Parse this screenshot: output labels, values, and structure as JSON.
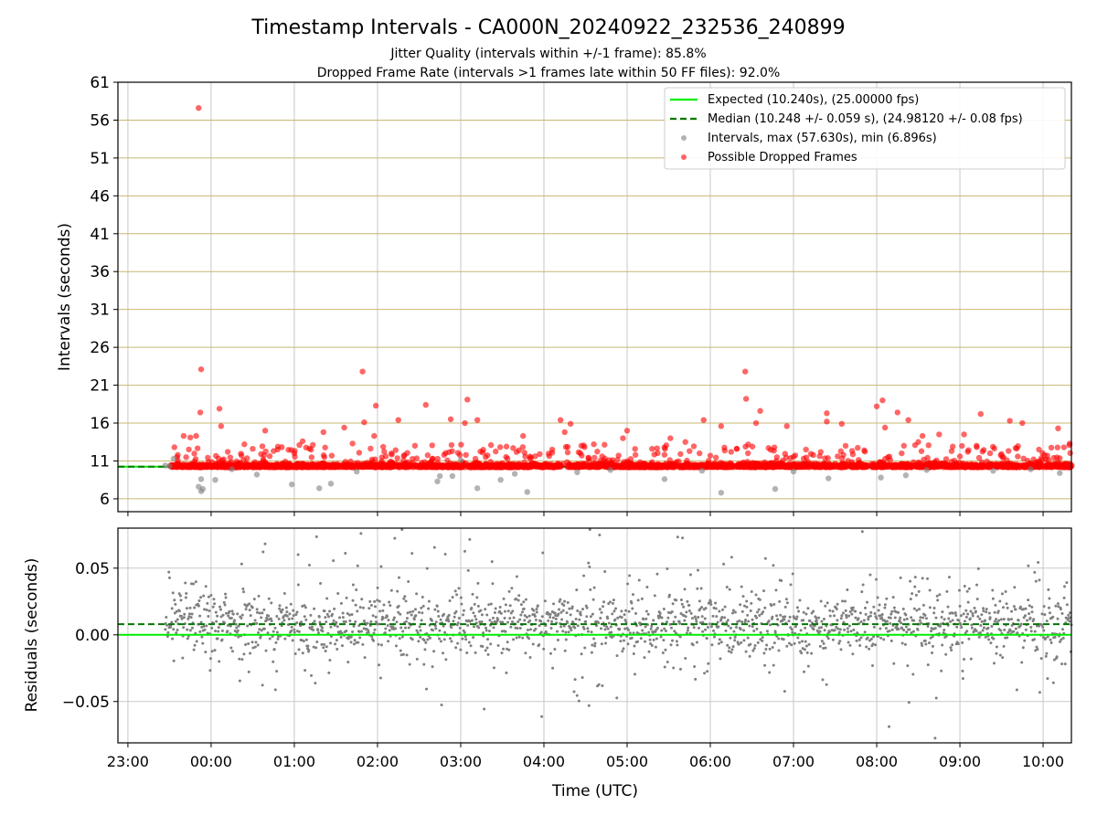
{
  "header": {
    "title": "Timestamp Intervals - CA000N_20240922_232536_240899",
    "subtitle1": "Jitter Quality (intervals within +/-1 frame): 85.8%",
    "subtitle2": "Dropped Frame Rate (intervals >1 frames late within 50 FF files): 92.0%"
  },
  "legend": {
    "expected": "Expected (10.240s), (25.00000 fps)",
    "median": "Median (10.248 +/- 0.059 s), (24.98120 +/- 0.08 fps)",
    "intervals": "Intervals, max (57.630s), min (6.896s)",
    "dropped": "Possible Dropped Frames"
  },
  "colors": {
    "expected": "#00ee00",
    "median": "#007700",
    "interval": "#808080",
    "dropped": "#ff0000",
    "hgrid": "#c8b870",
    "vgrid": "#c8c8c8"
  },
  "chart_data": [
    {
      "type": "scatter",
      "name": "intervals-panel",
      "ylabel": "Intervals (seconds)",
      "ylim": [
        4.3,
        61
      ],
      "yticks": [
        "61",
        "56",
        "51",
        "46",
        "41",
        "36",
        "31",
        "26",
        "21",
        "16",
        "11",
        "6"
      ],
      "x_range_hours": [
        -1.12,
        10.34
      ],
      "expected": 10.24,
      "median": 10.248,
      "grid": true,
      "legend_position": "top-right",
      "dropped_points": [
        [
          -0.15,
          57.6
        ],
        [
          -0.12,
          23.1
        ],
        [
          -0.13,
          17.4
        ],
        [
          0.1,
          17.9
        ],
        [
          0.12,
          15.6
        ],
        [
          -0.33,
          14.3
        ],
        [
          -0.25,
          14.1
        ],
        [
          -0.18,
          14.3
        ],
        [
          0.4,
          13.2
        ],
        [
          0.65,
          15.0
        ],
        [
          1.35,
          14.8
        ],
        [
          1.6,
          15.4
        ],
        [
          1.82,
          22.8
        ],
        [
          1.98,
          18.3
        ],
        [
          1.84,
          16.1
        ],
        [
          1.96,
          14.3
        ],
        [
          1.7,
          13.3
        ],
        [
          2.25,
          16.4
        ],
        [
          2.58,
          18.4
        ],
        [
          2.88,
          16.5
        ],
        [
          3.08,
          19.1
        ],
        [
          3.2,
          16.4
        ],
        [
          3.05,
          16.0
        ],
        [
          3.75,
          14.3
        ],
        [
          4.2,
          16.4
        ],
        [
          4.32,
          15.9
        ],
        [
          4.25,
          14.8
        ],
        [
          4.45,
          13.0
        ],
        [
          5.0,
          15.0
        ],
        [
          4.95,
          14.0
        ],
        [
          5.52,
          14.0
        ],
        [
          5.7,
          13.5
        ],
        [
          5.92,
          16.4
        ],
        [
          6.13,
          15.6
        ],
        [
          6.42,
          22.8
        ],
        [
          6.43,
          19.2
        ],
        [
          6.6,
          17.6
        ],
        [
          6.55,
          16.0
        ],
        [
          6.92,
          15.6
        ],
        [
          7.4,
          17.3
        ],
        [
          7.4,
          16.2
        ],
        [
          7.58,
          15.9
        ],
        [
          8.0,
          18.2
        ],
        [
          8.07,
          19.0
        ],
        [
          8.25,
          17.4
        ],
        [
          8.38,
          16.4
        ],
        [
          8.1,
          15.4
        ],
        [
          8.55,
          14.3
        ],
        [
          8.75,
          14.5
        ],
        [
          9.05,
          14.5
        ],
        [
          9.25,
          17.2
        ],
        [
          9.6,
          16.3
        ],
        [
          9.75,
          16.0
        ],
        [
          10.18,
          15.3
        ],
        [
          10.32,
          13.3
        ],
        [
          0.5,
          12.6
        ],
        [
          0.8,
          12.5
        ],
        [
          1.1,
          13.6
        ],
        [
          2.45,
          13.0
        ],
        [
          3.55,
          12.9
        ],
        [
          3.7,
          12.4
        ],
        [
          4.1,
          12.5
        ],
        [
          4.6,
          13.2
        ],
        [
          5.3,
          12.6
        ],
        [
          5.75,
          12.3
        ],
        [
          6.25,
          12.2
        ],
        [
          6.7,
          12.7
        ],
        [
          7.15,
          12.5
        ],
        [
          7.85,
          12.4
        ],
        [
          8.5,
          13.5
        ],
        [
          8.9,
          12.3
        ],
        [
          9.2,
          13.0
        ],
        [
          9.95,
          12.5
        ],
        [
          10.25,
          12.8
        ],
        [
          -0.4,
          11.8
        ],
        [
          -0.3,
          11.5
        ],
        [
          0.2,
          12.2
        ],
        [
          0.6,
          11.9
        ],
        [
          1.0,
          12.0
        ],
        [
          1.45,
          11.7
        ],
        [
          2.1,
          11.6
        ],
        [
          2.8,
          11.8
        ],
        [
          3.3,
          11.5
        ],
        [
          3.95,
          11.9
        ],
        [
          4.7,
          11.6
        ],
        [
          5.1,
          11.8
        ],
        [
          6.0,
          11.7
        ],
        [
          6.8,
          11.5
        ],
        [
          7.6,
          11.8
        ],
        [
          8.3,
          12.0
        ],
        [
          9.0,
          11.6
        ],
        [
          9.5,
          11.9
        ],
        [
          10.05,
          11.7
        ]
      ],
      "gray_points": [
        [
          -0.12,
          7.0
        ],
        [
          -0.1,
          7.3
        ],
        [
          -0.15,
          7.6
        ],
        [
          -0.12,
          8.6
        ],
        [
          0.05,
          8.5
        ],
        [
          0.55,
          9.2
        ],
        [
          0.97,
          7.9
        ],
        [
          1.3,
          7.4
        ],
        [
          1.44,
          8.0
        ],
        [
          2.72,
          8.3
        ],
        [
          2.75,
          9.0
        ],
        [
          3.2,
          7.4
        ],
        [
          3.48,
          8.5
        ],
        [
          3.8,
          6.9
        ],
        [
          4.4,
          9.5
        ],
        [
          5.45,
          8.6
        ],
        [
          6.13,
          6.8
        ],
        [
          6.78,
          7.3
        ],
        [
          7.42,
          8.7
        ],
        [
          8.05,
          8.8
        ],
        [
          8.35,
          9.1
        ],
        [
          -0.5,
          10.3
        ],
        [
          -0.45,
          11.3
        ],
        [
          -0.55,
          10.4
        ],
        [
          10.2,
          9.4
        ],
        [
          2.9,
          9.0
        ],
        [
          3.0,
          11.1
        ],
        [
          3.65,
          9.3
        ],
        [
          0.25,
          9.9
        ],
        [
          1.75,
          9.6
        ],
        [
          4.8,
          9.8
        ],
        [
          5.9,
          9.7
        ],
        [
          7.0,
          9.6
        ],
        [
          8.6,
          9.8
        ],
        [
          9.4,
          9.7
        ],
        [
          9.85,
          9.9
        ]
      ]
    },
    {
      "type": "scatter",
      "name": "residuals-panel",
      "xlabel": "Time (UTC)",
      "ylabel": "Residuals (seconds)",
      "ylim": [
        -0.081,
        0.08
      ],
      "yticks": [
        0.05,
        0.0,
        -0.05
      ],
      "ytick_labels": [
        "0.05",
        "0.00",
        "−0.05"
      ],
      "xtick_hours": [
        -1,
        0,
        1,
        2,
        3,
        4,
        5,
        6,
        7,
        8,
        9,
        10
      ],
      "xtick_labels": [
        "23:00",
        "00:00",
        "01:00",
        "02:00",
        "03:00",
        "04:00",
        "05:00",
        "06:00",
        "07:00",
        "08:00",
        "09:00",
        "10:00"
      ],
      "expected": 0.0,
      "median": 0.008,
      "start_hours": -0.55,
      "n_points": 1900,
      "residual_sd": 0.018
    }
  ]
}
